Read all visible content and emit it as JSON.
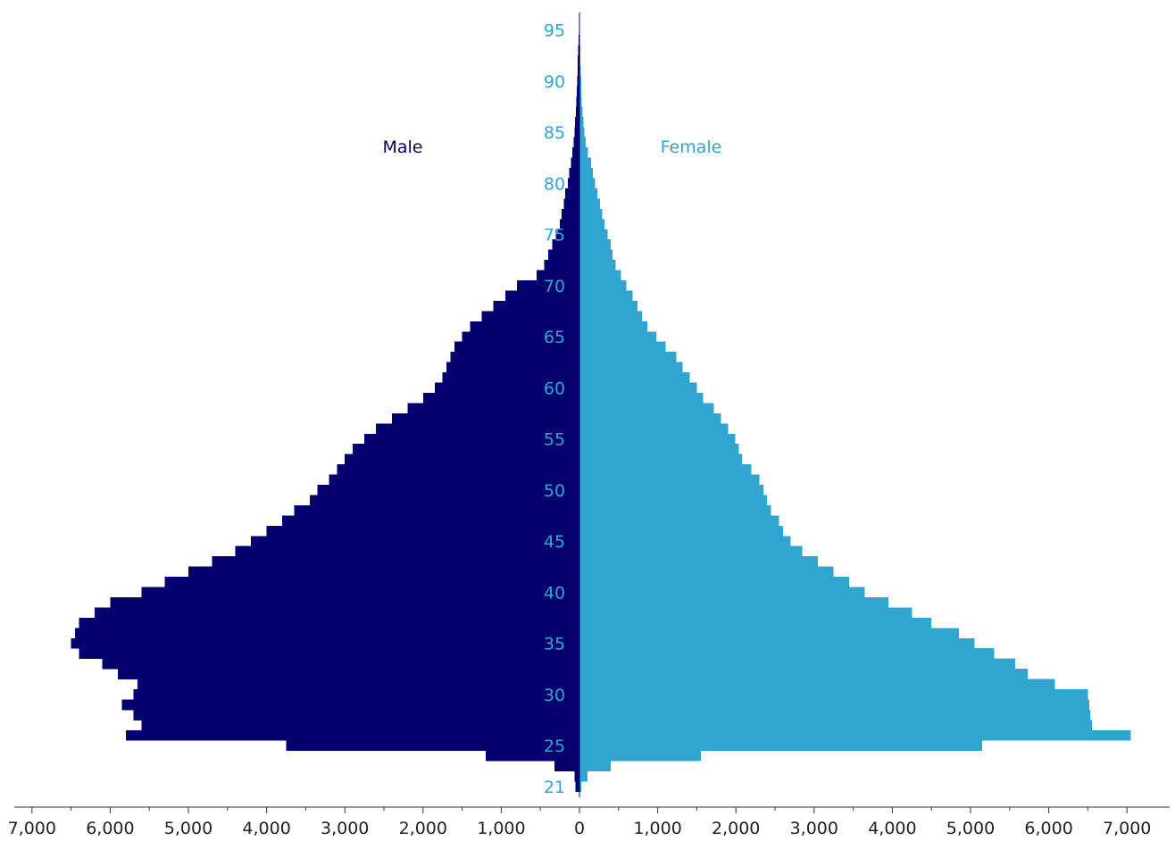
{
  "chart_data": {
    "type": "bar",
    "orientation": "horizontal-pyramid",
    "title": "",
    "xlabel": "",
    "ylabel": "",
    "x_axis_ticks": [
      "7,000",
      "6,000",
      "5,000",
      "4,000",
      "3,000",
      "2,000",
      "1,000",
      "0",
      "1,000",
      "2,000",
      "3,000",
      "4,000",
      "5,000",
      "6,000",
      "7,000"
    ],
    "x_axis_tick_values": [
      -7000,
      -6000,
      -5000,
      -4000,
      -3000,
      -2000,
      -1000,
      0,
      1000,
      2000,
      3000,
      4000,
      5000,
      6000,
      7000
    ],
    "xlim": [
      -7000,
      7000
    ],
    "age_labels": [
      "21",
      "25",
      "30",
      "35",
      "40",
      "45",
      "50",
      "55",
      "60",
      "65",
      "70",
      "75",
      "80",
      "85",
      "90",
      "95"
    ],
    "ages": [
      21,
      22,
      23,
      24,
      25,
      26,
      27,
      28,
      29,
      30,
      31,
      32,
      33,
      34,
      35,
      36,
      37,
      38,
      39,
      40,
      41,
      42,
      43,
      44,
      45,
      46,
      47,
      48,
      49,
      50,
      51,
      52,
      53,
      54,
      55,
      56,
      57,
      58,
      59,
      60,
      61,
      62,
      63,
      64,
      65,
      66,
      67,
      68,
      69,
      70,
      71,
      72,
      73,
      74,
      75,
      76,
      77,
      78,
      79,
      80,
      81,
      82,
      83,
      84,
      85,
      86,
      87,
      88,
      89,
      90,
      91,
      92,
      93,
      94,
      95,
      96
    ],
    "series": [
      {
        "name": "Male",
        "color": "#04006e",
        "values": [
          50,
          60,
          320,
          1200,
          3750,
          5800,
          5600,
          5700,
          5850,
          5700,
          5650,
          5900,
          6100,
          6400,
          6500,
          6450,
          6400,
          6200,
          6000,
          5600,
          5300,
          5000,
          4700,
          4400,
          4200,
          4000,
          3800,
          3650,
          3450,
          3350,
          3200,
          3100,
          3000,
          2900,
          2750,
          2600,
          2400,
          2200,
          2000,
          1850,
          1750,
          1700,
          1650,
          1600,
          1500,
          1400,
          1250,
          1100,
          950,
          800,
          550,
          450,
          400,
          350,
          300,
          250,
          230,
          200,
          180,
          150,
          130,
          110,
          90,
          75,
          60,
          55,
          45,
          40,
          35,
          30,
          25,
          20,
          15,
          10,
          8,
          5
        ]
      },
      {
        "name": "Female",
        "color": "#31a5d0",
        "values": [
          20,
          100,
          400,
          1550,
          5150,
          7050,
          6550,
          6530,
          6520,
          6500,
          6080,
          5730,
          5570,
          5300,
          5050,
          4850,
          4500,
          4250,
          3950,
          3650,
          3450,
          3250,
          3050,
          2850,
          2700,
          2600,
          2550,
          2450,
          2400,
          2350,
          2300,
          2200,
          2080,
          2040,
          1990,
          1900,
          1810,
          1720,
          1580,
          1500,
          1410,
          1320,
          1240,
          1100,
          980,
          870,
          800,
          740,
          680,
          600,
          530,
          460,
          420,
          400,
          360,
          320,
          290,
          260,
          230,
          200,
          170,
          150,
          110,
          80,
          60,
          50,
          40,
          30,
          25,
          20,
          15,
          12,
          10,
          8,
          6,
          5
        ]
      }
    ],
    "legend": {
      "male_label": "Male",
      "female_label": "Female",
      "placement": "top, flanking axis"
    },
    "grid": false,
    "colors": {
      "male": "#04006e",
      "female": "#31a5d0",
      "age_label": "#31a5d0",
      "axis": "#333333"
    }
  }
}
